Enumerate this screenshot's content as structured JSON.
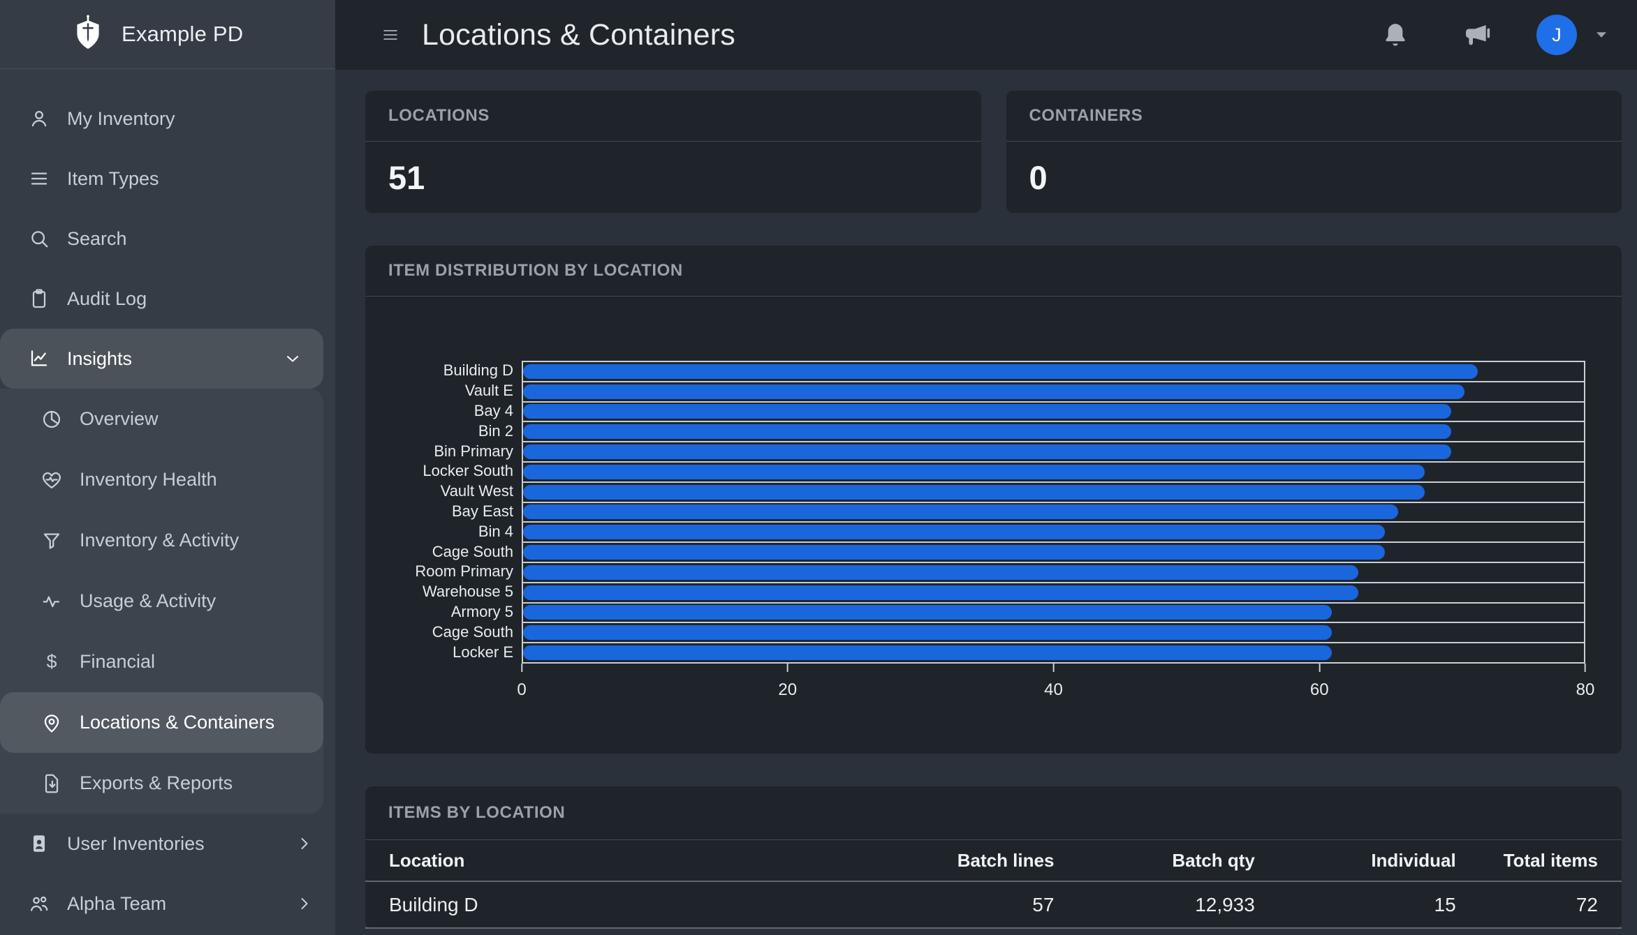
{
  "brand": {
    "name": "Example PD"
  },
  "topbar": {
    "title": "Locations & Containers"
  },
  "user": {
    "initial": "J"
  },
  "colors": {
    "bar_blue": "#1a66dd",
    "avatar_blue": "#1e6fe8",
    "sidebar_bg": "#363c45",
    "card_bg": "#1f242b",
    "topbar_bg": "#20252c",
    "content_bg": "#2b313a"
  },
  "sidebar": {
    "items": [
      {
        "id": "my-inventory",
        "icon": "user",
        "label": "My Inventory"
      },
      {
        "id": "item-types",
        "icon": "list",
        "label": "Item Types"
      },
      {
        "id": "search",
        "icon": "search",
        "label": "Search"
      },
      {
        "id": "audit-log",
        "icon": "clipboard",
        "label": "Audit Log"
      },
      {
        "id": "insights",
        "icon": "chart-line",
        "label": "Insights",
        "selected": true,
        "chevron": "down"
      },
      {
        "id": "overview",
        "icon": "pie",
        "label": "Overview",
        "sub": true
      },
      {
        "id": "inventory-health",
        "icon": "heart-pulse",
        "label": "Inventory Health",
        "sub": true
      },
      {
        "id": "inventory-activity",
        "icon": "funnel",
        "label": "Inventory & Activity",
        "sub": true
      },
      {
        "id": "usage-activity",
        "icon": "activity",
        "label": "Usage & Activity",
        "sub": true
      },
      {
        "id": "financial",
        "icon": "dollar",
        "label": "Financial",
        "sub": true
      },
      {
        "id": "locations-containers",
        "icon": "map-pin",
        "label": "Locations & Containers",
        "sub": true,
        "selected": true
      },
      {
        "id": "exports-reports",
        "icon": "file-download",
        "label": "Exports & Reports",
        "sub": true
      },
      {
        "id": "user-inventories",
        "icon": "user-card",
        "label": "User Inventories",
        "chevron": "right"
      },
      {
        "id": "alpha-team",
        "icon": "users",
        "label": "Alpha Team",
        "chevron": "right"
      }
    ]
  },
  "stats": [
    {
      "label": "LOCATIONS",
      "value": "51"
    },
    {
      "label": "CONTAINERS",
      "value": "0"
    }
  ],
  "chart_card": {
    "title": "ITEM DISTRIBUTION BY LOCATION"
  },
  "chart_data": {
    "type": "bar",
    "orientation": "horizontal",
    "title": "ITEM DISTRIBUTION BY LOCATION",
    "categories": [
      "Building D",
      "Vault E",
      "Bay 4",
      "Bin 2",
      "Bin Primary",
      "Locker South",
      "Vault West",
      "Bay East",
      "Bin 4",
      "Cage South",
      "Room Primary",
      "Warehouse 5",
      "Armory 5",
      "Cage South",
      "Locker E"
    ],
    "values": [
      72,
      71,
      70,
      70,
      70,
      68,
      68,
      66,
      65,
      65,
      63,
      63,
      61,
      61,
      61
    ],
    "xlabel": "",
    "ylabel": "",
    "xlim": [
      0,
      80
    ],
    "xticks": [
      0,
      20,
      40,
      60,
      80
    ],
    "grid": true,
    "legend": false,
    "bar_color": "#1a66dd"
  },
  "table_card": {
    "title": "ITEMS BY LOCATION",
    "columns": [
      "Location",
      "Batch lines",
      "Batch qty",
      "Individual",
      "Total items"
    ],
    "rows": [
      [
        "Building D",
        "57",
        "12,933",
        "15",
        "72"
      ]
    ]
  }
}
